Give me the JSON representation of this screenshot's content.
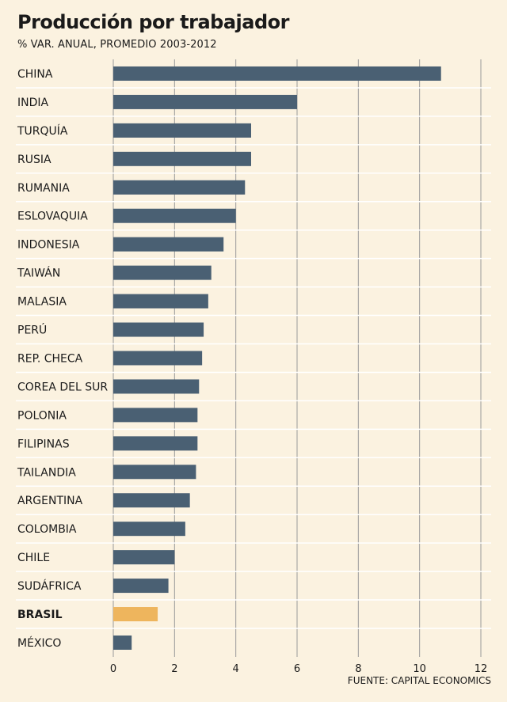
{
  "title": "Producción por trabajador",
  "subtitle": "% VAR. ANUAL, PROMEDIO 2003-2012",
  "source": "FUENTE: CAPITAL ECONOMICS",
  "colors": {
    "bar": "#4a6073",
    "highlight": "#eeb55d",
    "grid": "#9a9a9a",
    "background": "#fbf2e0"
  },
  "chart_data": {
    "type": "bar",
    "orientation": "horizontal",
    "title": "Producción por trabajador",
    "subtitle": "% VAR. ANUAL, PROMEDIO 2003-2012",
    "categories": [
      "CHINA",
      "INDIA",
      "TURQUÍA",
      "RUSIA",
      "RUMANIA",
      "ESLOVAQUIA",
      "INDONESIA",
      "TAIWÁN",
      "MALASIA",
      "PERÚ",
      "REP. CHECA",
      "COREA DEL SUR",
      "POLONIA",
      "FILIPINAS",
      "TAILANDIA",
      "ARGENTINA",
      "COLOMBIA",
      "CHILE",
      "SUDÁFRICA",
      "BRASIL",
      "MÉXICO"
    ],
    "values": [
      10.7,
      6.0,
      4.5,
      4.5,
      4.3,
      4.0,
      3.6,
      3.2,
      3.1,
      2.95,
      2.9,
      2.8,
      2.75,
      2.75,
      2.7,
      2.5,
      2.35,
      2.0,
      1.8,
      1.45,
      0.6
    ],
    "highlight": "BRASIL",
    "xlim": [
      0,
      12
    ],
    "xticks": [
      0,
      2,
      4,
      6,
      8,
      10,
      12
    ],
    "grid": true
  }
}
